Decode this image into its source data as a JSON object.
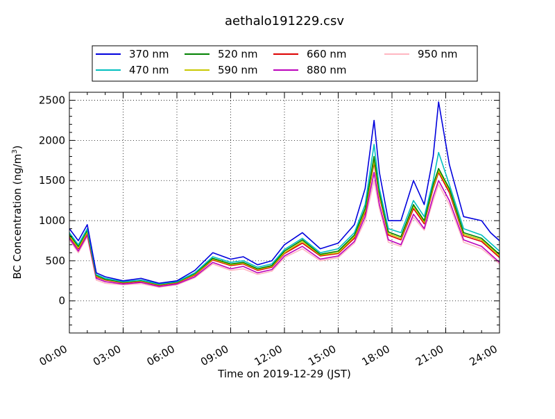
{
  "chart_data": {
    "type": "line",
    "title": "aethalo191229.csv",
    "xlabel": "Time on 2019-12-29 (JST)",
    "ylabel": "BC Concentration (ng/m",
    "ylabel_superscript": "3",
    "ylabel_suffix": ")",
    "xlim": [
      0,
      24
    ],
    "ylim": [
      -400,
      2600
    ],
    "xticks": [
      {
        "x": 0,
        "label": "00:00"
      },
      {
        "x": 3,
        "label": "03:00"
      },
      {
        "x": 6,
        "label": "06:00"
      },
      {
        "x": 9,
        "label": "09:00"
      },
      {
        "x": 12,
        "label": "12:00"
      },
      {
        "x": 15,
        "label": "15:00"
      },
      {
        "x": 18,
        "label": "18:00"
      },
      {
        "x": 21,
        "label": "21:00"
      },
      {
        "x": 24,
        "label": "24:00"
      }
    ],
    "yticks": [
      {
        "y": 0,
        "label": "0"
      },
      {
        "y": 500,
        "label": "500"
      },
      {
        "y": 1000,
        "label": "1000"
      },
      {
        "y": 1500,
        "label": "1500"
      },
      {
        "y": 2000,
        "label": "2000"
      },
      {
        "y": 2500,
        "label": "2500"
      }
    ],
    "grid": true,
    "legend_position": "top-center",
    "series": [
      {
        "name": "370 nm",
        "color": "#0000dd",
        "x": [
          0,
          0.5,
          1,
          1.5,
          2,
          3,
          4,
          5,
          6,
          7,
          8,
          9,
          9.7,
          10.5,
          11.3,
          12,
          13,
          14,
          15,
          15.9,
          16.5,
          17,
          17.3,
          17.8,
          18.5,
          19.2,
          19.8,
          20.3,
          20.6,
          21.2,
          22,
          23,
          23.5,
          24
        ],
        "y": [
          900,
          750,
          950,
          350,
          300,
          250,
          280,
          220,
          250,
          380,
          600,
          520,
          550,
          450,
          500,
          700,
          850,
          650,
          720,
          950,
          1400,
          2250,
          1600,
          1000,
          1000,
          1500,
          1200,
          1800,
          2480,
          1700,
          1050,
          1000,
          850,
          750
        ]
      },
      {
        "name": "470 nm",
        "color": "#00bfbf",
        "x": [
          0,
          0.5,
          1,
          1.5,
          2,
          3,
          4,
          5,
          6,
          7,
          8,
          9,
          9.7,
          10.5,
          11.3,
          12,
          13,
          14,
          15,
          15.9,
          16.5,
          17,
          17.3,
          17.8,
          18.5,
          19.2,
          19.8,
          20.3,
          20.6,
          21.2,
          22,
          23,
          23.5,
          24
        ],
        "y": [
          850,
          700,
          900,
          330,
          280,
          240,
          260,
          210,
          240,
          350,
          550,
          480,
          500,
          420,
          460,
          640,
          780,
          600,
          650,
          850,
          1200,
          1950,
          1400,
          900,
          850,
          1250,
          1050,
          1500,
          1850,
          1450,
          900,
          820,
          720,
          620
        ]
      },
      {
        "name": "520 nm",
        "color": "#008000",
        "x": [
          0,
          0.5,
          1,
          1.5,
          2,
          3,
          4,
          5,
          6,
          7,
          8,
          9,
          9.7,
          10.5,
          11.3,
          12,
          13,
          14,
          15,
          15.9,
          16.5,
          17,
          17.3,
          17.8,
          18.5,
          19.2,
          19.8,
          20.3,
          20.6,
          21.2,
          22,
          23,
          23.5,
          24
        ],
        "y": [
          830,
          680,
          880,
          320,
          270,
          235,
          255,
          205,
          235,
          340,
          530,
          460,
          480,
          400,
          440,
          620,
          760,
          580,
          620,
          820,
          1150,
          1800,
          1350,
          860,
          800,
          1200,
          1000,
          1450,
          1650,
          1400,
          850,
          780,
          680,
          580
        ]
      },
      {
        "name": "590 nm",
        "color": "#c8c800",
        "x": [
          0,
          0.5,
          1,
          1.5,
          2,
          3,
          4,
          5,
          6,
          7,
          8,
          9,
          9.7,
          10.5,
          11.3,
          12,
          13,
          14,
          15,
          15.9,
          16.5,
          17,
          17.3,
          17.8,
          18.5,
          19.2,
          19.8,
          20.3,
          20.6,
          21.2,
          22,
          23,
          23.5,
          24
        ],
        "y": [
          810,
          660,
          860,
          310,
          265,
          230,
          250,
          200,
          230,
          330,
          520,
          450,
          470,
          390,
          430,
          600,
          740,
          570,
          600,
          800,
          1120,
          1750,
          1320,
          840,
          780,
          1180,
          980,
          1420,
          1620,
          1380,
          830,
          760,
          660,
          560
        ]
      },
      {
        "name": "660 nm",
        "color": "#dd0000",
        "x": [
          0,
          0.5,
          1,
          1.5,
          2,
          3,
          4,
          5,
          6,
          7,
          8,
          9,
          9.7,
          10.5,
          11.3,
          12,
          13,
          14,
          15,
          15.9,
          16.5,
          17,
          17.3,
          17.8,
          18.5,
          19.2,
          19.8,
          20.3,
          20.6,
          21.2,
          22,
          23,
          23.5,
          24
        ],
        "y": [
          800,
          650,
          850,
          300,
          260,
          225,
          245,
          195,
          225,
          320,
          510,
          440,
          460,
          380,
          420,
          590,
          720,
          560,
          590,
          780,
          1100,
          1720,
          1300,
          820,
          760,
          1150,
          960,
          1400,
          1600,
          1350,
          810,
          740,
          640,
          540
        ]
      },
      {
        "name": "880 nm",
        "color": "#bb00bb",
        "x": [
          0,
          0.5,
          1,
          1.5,
          2,
          3,
          4,
          5,
          6,
          7,
          8,
          9,
          9.7,
          10.5,
          11.3,
          12,
          13,
          14,
          15,
          15.9,
          16.5,
          17,
          17.3,
          17.8,
          18.5,
          19.2,
          19.8,
          20.3,
          20.6,
          21.2,
          22,
          23,
          23.5,
          24
        ],
        "y": [
          780,
          620,
          820,
          280,
          240,
          210,
          230,
          180,
          210,
          300,
          480,
          400,
          430,
          350,
          390,
          560,
          680,
          520,
          560,
          740,
          1050,
          1600,
          1200,
          760,
          700,
          1080,
          900,
          1300,
          1500,
          1250,
          760,
          680,
          580,
          480
        ]
      },
      {
        "name": "950 nm",
        "color": "#ffb6c1",
        "x": [
          0,
          0.5,
          1,
          1.5,
          2,
          3,
          4,
          5,
          6,
          7,
          8,
          9,
          9.7,
          10.5,
          11.3,
          12,
          13,
          14,
          15,
          15.9,
          16.5,
          17,
          17.3,
          17.8,
          18.5,
          19.2,
          19.8,
          20.3,
          20.6,
          21.2,
          22,
          23,
          23.5,
          24
        ],
        "y": [
          760,
          600,
          800,
          260,
          220,
          200,
          215,
          170,
          200,
          290,
          460,
          380,
          400,
          330,
          370,
          540,
          650,
          500,
          540,
          720,
          1000,
          1500,
          1150,
          730,
          680,
          1040,
          880,
          1250,
          1450,
          1200,
          730,
          650,
          560,
          460
        ]
      }
    ]
  }
}
